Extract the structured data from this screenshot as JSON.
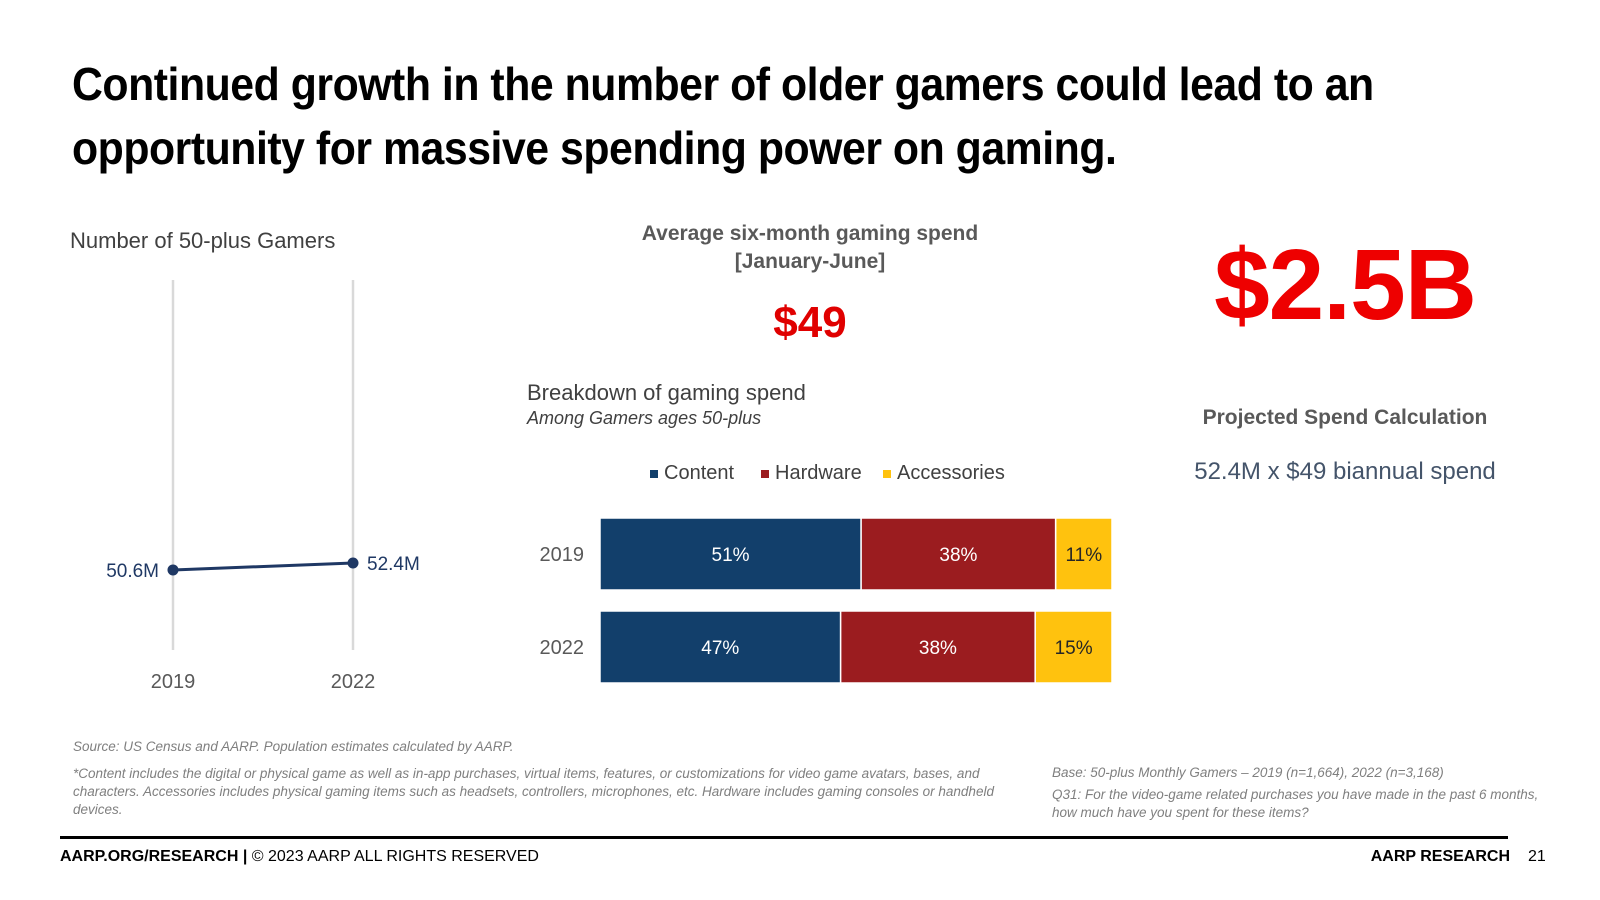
{
  "title": "Continued growth in the number of older gamers could lead to an opportunity for massive spending power on gaming.",
  "colors": {
    "title": "#000000",
    "accent_red": "#e00000",
    "line": "#1f3864",
    "content": "#123f6b",
    "hardware": "#9b1c1f",
    "accessories": "#ffc20e",
    "muted_text": "#595959"
  },
  "line_section": {
    "title": "Number of 50-plus Gamers"
  },
  "spend_section": {
    "title_line1": "Average six-month gaming spend",
    "title_line2": "[January-June]",
    "value": "$49"
  },
  "breakdown_section": {
    "title": "Breakdown of gaming spend",
    "subtitle": "Among Gamers ages 50-plus"
  },
  "projection": {
    "value": "$2.5B",
    "label": "Projected Spend Calculation",
    "formula": "52.4M x $49 biannual spend"
  },
  "notes": {
    "source": "Source: US Census and AARP.  Population estimates calculated by AARP.",
    "footnote": "*Content includes the digital or physical game as well as in-app purchases, virtual items, features, or customizations for video game avatars, bases, and characters. Accessories includes physical gaming items such as headsets, controllers, microphones, etc. Hardware includes gaming consoles or handheld devices.",
    "base": "Base: 50-plus Monthly Gamers – 2019 (n=1,664), 2022 (n=3,168)",
    "question": "Q31: For the video-game related purchases you have made in the past 6 months, how much have you spent for these items?"
  },
  "footer": {
    "left_bold": "AARP.ORG/RESEARCH |",
    "left_regular": " © 2023 AARP ALL RIGHTS RESERVED",
    "right": "AARP RESEARCH",
    "page_number": "21"
  },
  "chart_data": [
    {
      "type": "line",
      "title": "Number of 50-plus Gamers",
      "x": [
        "2019",
        "2022"
      ],
      "values": [
        50.6,
        52.4
      ],
      "labels": [
        "50.6M",
        "52.4M"
      ],
      "ylim": [
        0,
        55
      ],
      "unit": "M"
    },
    {
      "type": "bar",
      "stacked": true,
      "orientation": "horizontal",
      "title": "Breakdown of gaming spend",
      "categories": [
        "2019",
        "2022"
      ],
      "series": [
        {
          "name": "Content",
          "values": [
            51,
            47
          ],
          "labels": [
            "51%",
            "47%"
          ]
        },
        {
          "name": "Hardware",
          "values": [
            38,
            38
          ],
          "labels": [
            "38%",
            "38%"
          ]
        },
        {
          "name": "Accessories",
          "values": [
            11,
            15
          ],
          "labels": [
            "11%",
            "15%"
          ]
        }
      ],
      "legend": "top",
      "xlim": [
        0,
        100
      ]
    }
  ]
}
